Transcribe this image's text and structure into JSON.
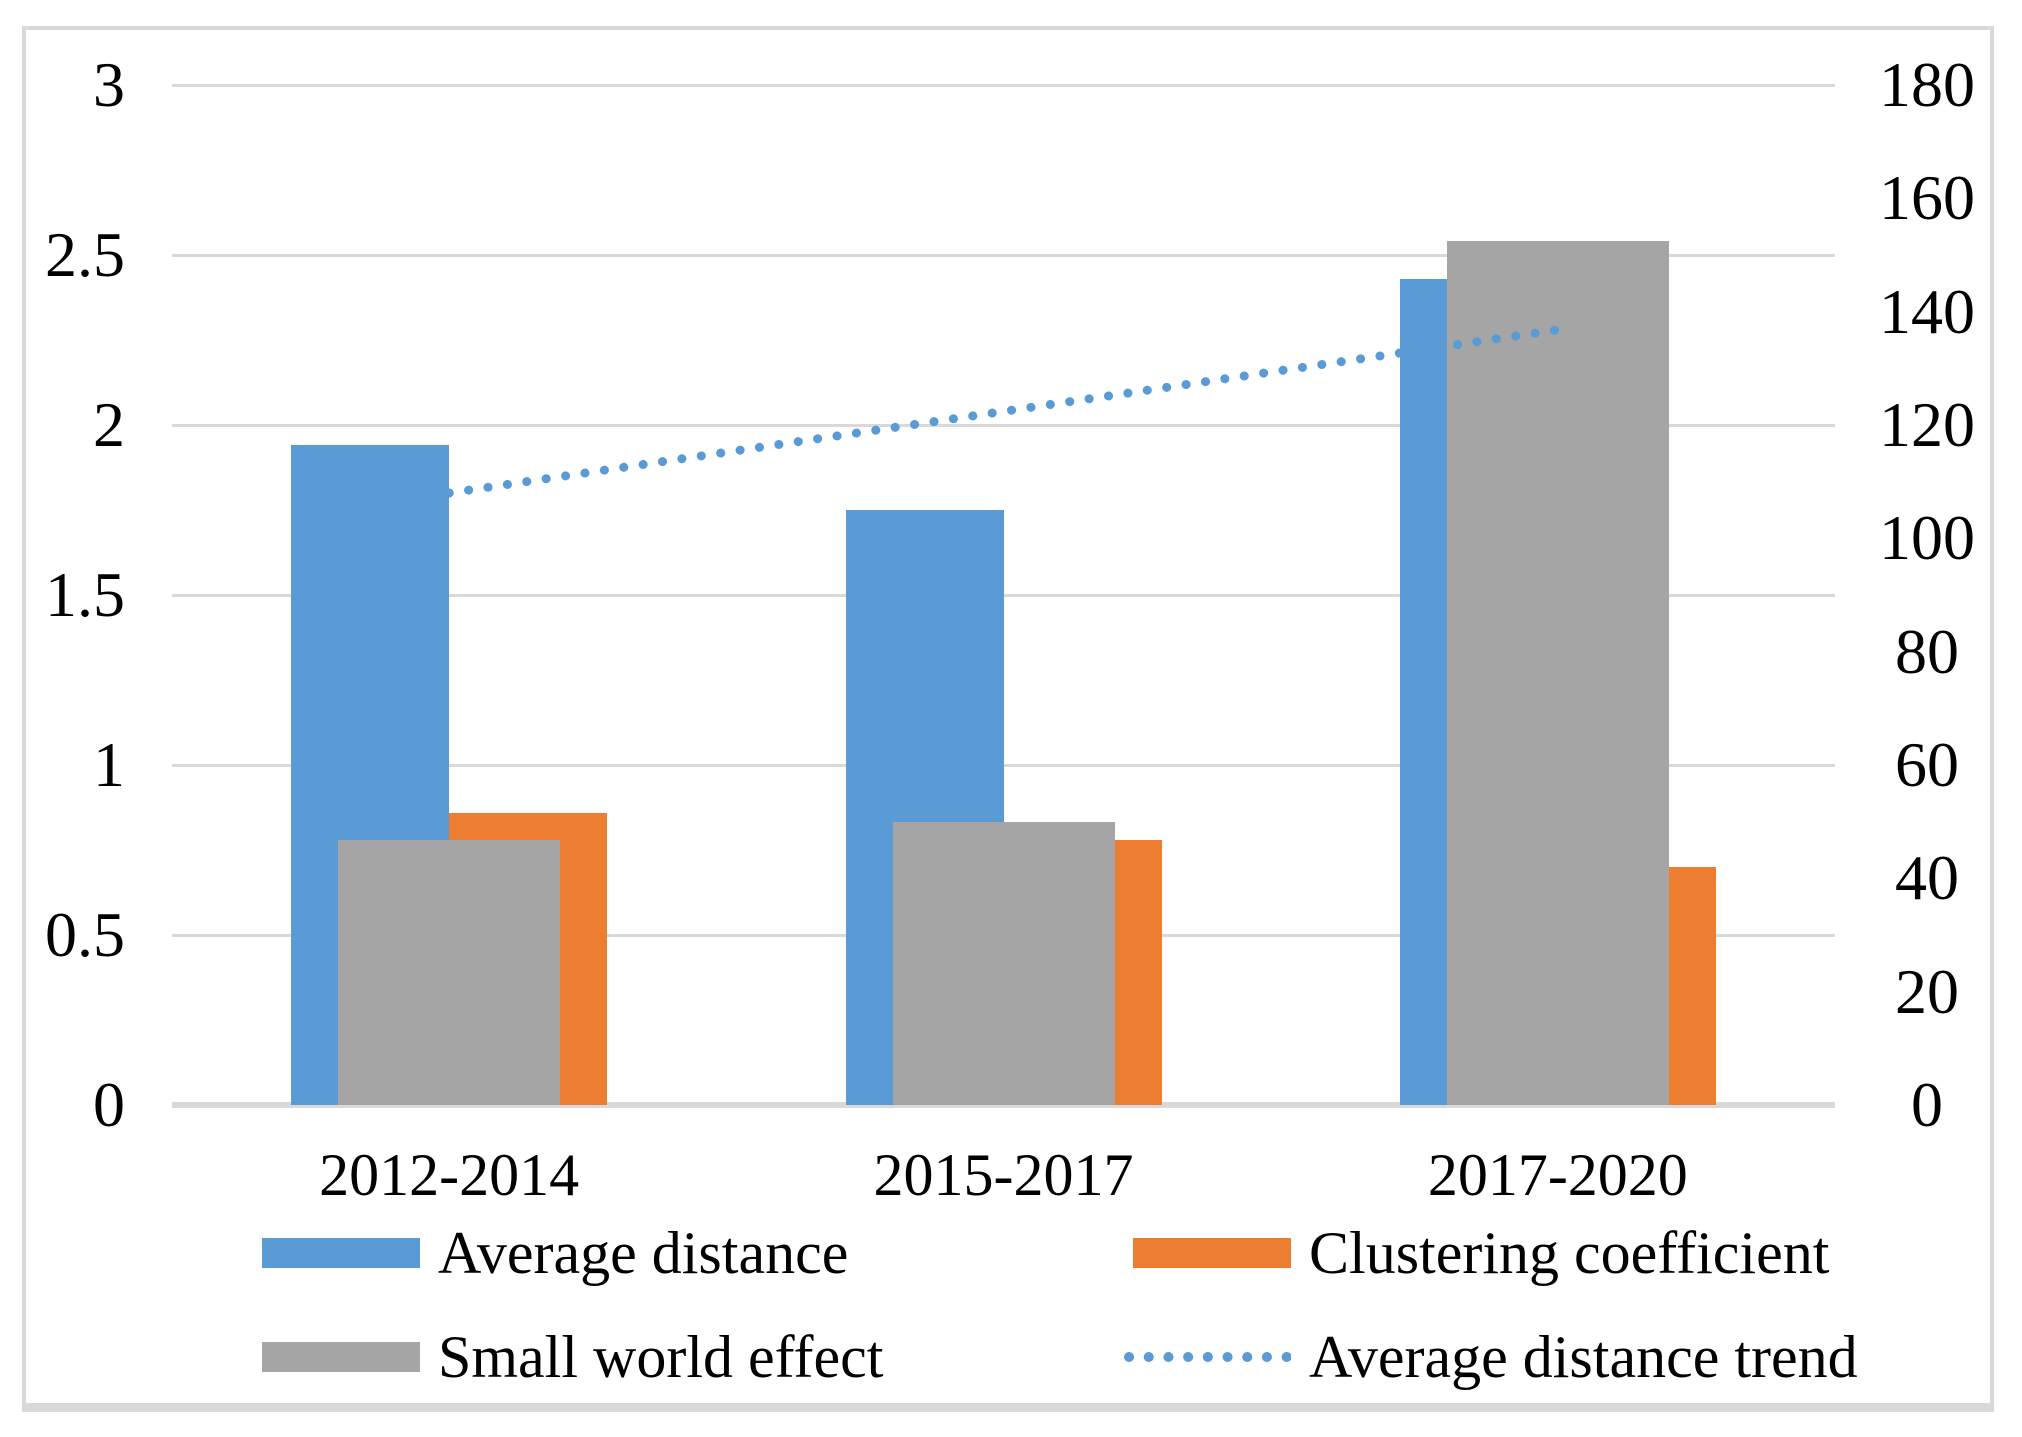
{
  "chart_data": {
    "type": "bar",
    "title": "",
    "categories": [
      "2012-2014",
      "2015-2017",
      "2017-2020"
    ],
    "series": [
      {
        "name": "Average distance",
        "type": "bar",
        "axis": "left",
        "color": "#5B9BD5",
        "values": [
          1.94,
          1.75,
          2.43
        ]
      },
      {
        "name": "Clustering coefficient",
        "type": "bar",
        "axis": "left",
        "color": "#ED7D31",
        "values": [
          0.86,
          0.78,
          0.7
        ]
      },
      {
        "name": "Small world effect",
        "type": "bar",
        "axis": "right",
        "color": "#A5A5A5",
        "values": [
          46.8,
          50,
          152.5
        ]
      },
      {
        "name": "Average distance trend",
        "type": "dotted-line",
        "axis": "left",
        "color": "#5B9BD5",
        "values": [
          1.8,
          2.04,
          2.28
        ]
      }
    ],
    "left_axis": {
      "min": 0,
      "max": 3,
      "ticks": [
        3,
        2.5,
        2,
        1.5,
        1,
        0.5,
        0
      ]
    },
    "right_axis": {
      "min": 0,
      "max": 180,
      "ticks": [
        180,
        160,
        140,
        120,
        100,
        80,
        60,
        40,
        20,
        0
      ]
    },
    "grid": true,
    "gridline_color": "#d9d9d9",
    "legend_position": "bottom"
  }
}
